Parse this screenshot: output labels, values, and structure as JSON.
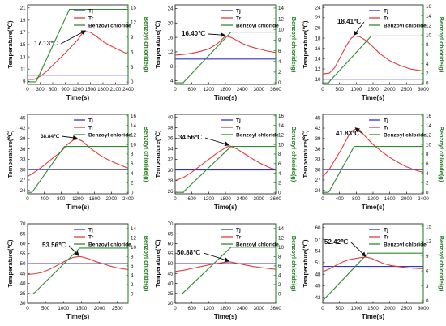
{
  "colors": {
    "tj": "#3333cc",
    "tr": "#e03c3c",
    "bc": "#2e8b2e",
    "axis_right": "#1f7a1f",
    "arrow": "#111111"
  },
  "legend": {
    "tj": "Tj",
    "tr": "Tr",
    "bc": "Benzoyl chloride"
  },
  "axes": {
    "xlabel": "Time(s)",
    "ylabel": "Temperature(℃)",
    "ylabel_right": "Benzoyl chloride(g)"
  },
  "chart_data": [
    {
      "type": "line",
      "annotation": "17.13℃",
      "xticks": [
        0,
        300,
        600,
        900,
        1200,
        1500,
        1800,
        2100,
        2400
      ],
      "xlim": [
        0,
        2400
      ],
      "yticks": [
        9,
        11,
        13,
        15,
        17,
        19,
        21
      ],
      "ylim": [
        8.5,
        21.5
      ],
      "y2ticks": [
        0,
        3,
        6,
        9,
        12,
        15
      ],
      "y2lim": [
        -0.5,
        15.5
      ],
      "series": [
        {
          "name": "Tj",
          "axis": "left",
          "x": [
            0,
            2400
          ],
          "y": [
            10,
            10
          ]
        },
        {
          "name": "Tr",
          "axis": "left",
          "x": [
            0,
            150,
            300,
            450,
            600,
            750,
            900,
            1050,
            1200,
            1300,
            1400,
            1500,
            1650,
            1800,
            1950,
            2100,
            2250,
            2400
          ],
          "y": [
            9.3,
            9.3,
            9.8,
            10.6,
            11.6,
            12.6,
            13.6,
            14.7,
            15.8,
            16.8,
            17.13,
            17.0,
            16.3,
            15.5,
            14.9,
            14.4,
            13.9,
            13.4
          ]
        },
        {
          "name": "Benzoyl chloride",
          "axis": "right",
          "x": [
            0,
            200,
            220,
            1000,
            2400
          ],
          "y": [
            0,
            0,
            0.3,
            14.6,
            14.6
          ]
        }
      ],
      "annotation_point": [
        1400,
        17.13
      ]
    },
    {
      "type": "line",
      "annotation": "16.40℃",
      "xticks": [
        0,
        600,
        1200,
        1800,
        2400,
        3000,
        3600
      ],
      "xlim": [
        0,
        3600
      ],
      "yticks": [
        4,
        8,
        12,
        16,
        20,
        24
      ],
      "ylim": [
        3,
        25
      ],
      "y2ticks": [
        0,
        2,
        4,
        6,
        8,
        10,
        12,
        14
      ],
      "y2lim": [
        -0.3,
        14.6
      ],
      "series": [
        {
          "name": "Tj",
          "axis": "left",
          "x": [
            0,
            3600
          ],
          "y": [
            10,
            10
          ]
        },
        {
          "name": "Tr",
          "axis": "left",
          "x": [
            0,
            300,
            600,
            900,
            1200,
            1500,
            1650,
            1800,
            2000,
            2200,
            2400,
            2700,
            3000,
            3300,
            3600
          ],
          "y": [
            11.1,
            11.3,
            11.6,
            12.1,
            12.8,
            14.2,
            15.2,
            16.4,
            16.0,
            15.2,
            14.3,
            13.4,
            12.8,
            12.2,
            11.8
          ]
        },
        {
          "name": "Benzoyl chloride",
          "axis": "right",
          "x": [
            0,
            300,
            320,
            2000,
            3600
          ],
          "y": [
            0,
            0,
            0.2,
            9.5,
            9.5
          ]
        }
      ],
      "annotation_point": [
        1800,
        16.4
      ]
    },
    {
      "type": "line",
      "annotation": "18.41℃",
      "xticks": [
        0,
        500,
        1000,
        1500,
        2000,
        2500,
        3000
      ],
      "xlim": [
        0,
        3000
      ],
      "yticks": [
        10,
        12,
        14,
        16,
        18,
        20,
        22,
        24
      ],
      "ylim": [
        9,
        24.5
      ],
      "y2ticks": [
        0,
        2,
        4,
        6,
        8,
        10,
        12,
        14,
        16
      ],
      "y2lim": [
        -0.3,
        16.3
      ],
      "series": [
        {
          "name": "Tj",
          "axis": "left",
          "x": [
            0,
            3000
          ],
          "y": [
            10,
            10
          ]
        },
        {
          "name": "Tr",
          "axis": "left",
          "x": [
            0,
            200,
            350,
            500,
            700,
            850,
            950,
            1100,
            1300,
            1500,
            1700,
            2000,
            2300,
            2600,
            3000
          ],
          "y": [
            11.0,
            11.2,
            12.2,
            14.0,
            16.5,
            18.0,
            18.41,
            18.3,
            17.5,
            16.3,
            15.0,
            13.6,
            12.7,
            12.0,
            11.6
          ]
        },
        {
          "name": "Benzoyl chloride",
          "axis": "right",
          "x": [
            0,
            180,
            200,
            1450,
            3000
          ],
          "y": [
            0,
            0,
            0.3,
            9.8,
            9.8
          ]
        }
      ],
      "annotation_point": [
        950,
        18.41
      ]
    },
    {
      "type": "line",
      "annotation": "38.84℃",
      "xticks": [
        0,
        400,
        800,
        1200,
        1600,
        2000,
        2400
      ],
      "xlim": [
        0,
        2400
      ],
      "yticks": [
        24,
        27,
        30,
        33,
        36,
        39,
        42,
        45
      ],
      "ylim": [
        23,
        46
      ],
      "y2ticks": [
        0,
        2,
        4,
        6,
        8,
        10,
        12,
        14,
        16
      ],
      "y2lim": [
        -0.3,
        16.3
      ],
      "series": [
        {
          "name": "Tj",
          "axis": "left",
          "x": [
            0,
            2400
          ],
          "y": [
            30,
            30
          ]
        },
        {
          "name": "Tr",
          "axis": "left",
          "x": [
            0,
            200,
            400,
            600,
            800,
            950,
            1100,
            1200,
            1300,
            1500,
            1700,
            1900,
            2100,
            2400
          ],
          "y": [
            28.0,
            29.5,
            31.3,
            33.3,
            35.2,
            37.3,
            38.6,
            38.84,
            38.3,
            36.2,
            34.4,
            33.0,
            31.9,
            30.4
          ]
        },
        {
          "name": "Benzoyl chloride",
          "axis": "right",
          "x": [
            0,
            100,
            130,
            880,
            2400
          ],
          "y": [
            0,
            0,
            0.3,
            9.6,
            9.6
          ]
        }
      ],
      "annotation_point": [
        1200,
        38.84
      ]
    },
    {
      "type": "line",
      "annotation": "34.56℃",
      "xticks": [
        0,
        600,
        1200,
        1800,
        2400,
        3000,
        3600
      ],
      "xlim": [
        0,
        3600
      ],
      "yticks": [
        26,
        28,
        30,
        32,
        34,
        36,
        38,
        40
      ],
      "ylim": [
        25.5,
        40.5
      ],
      "y2ticks": [
        0,
        2,
        4,
        6,
        8,
        10,
        12,
        14,
        16
      ],
      "y2lim": [
        -0.3,
        16.3
      ],
      "series": [
        {
          "name": "Tj",
          "axis": "left",
          "x": [
            0,
            3600
          ],
          "y": [
            30,
            30
          ]
        },
        {
          "name": "Tr",
          "axis": "left",
          "x": [
            0,
            300,
            600,
            900,
            1200,
            1500,
            1800,
            1950,
            2200,
            2500,
            2800,
            3100,
            3400,
            3600
          ],
          "y": [
            28.0,
            28.6,
            29.6,
            30.8,
            32.0,
            33.2,
            34.2,
            34.56,
            34.0,
            33.0,
            32.0,
            31.1,
            30.4,
            30.1
          ]
        },
        {
          "name": "Benzoyl chloride",
          "axis": "right",
          "x": [
            0,
            300,
            330,
            2000,
            3600
          ],
          "y": [
            0,
            0,
            0.3,
            9.6,
            9.6
          ]
        }
      ],
      "annotation_point": [
        1950,
        34.56
      ]
    },
    {
      "type": "line",
      "annotation": "41.83℃",
      "xticks": [
        0,
        400,
        800,
        1200,
        1600,
        2000,
        2400
      ],
      "xlim": [
        0,
        2400
      ],
      "yticks": [
        24,
        27,
        30,
        33,
        36,
        39,
        42,
        45
      ],
      "ylim": [
        23,
        46
      ],
      "y2ticks": [
        0,
        2,
        4,
        6,
        8,
        10,
        12,
        14,
        16
      ],
      "y2lim": [
        -0.3,
        16.3
      ],
      "series": [
        {
          "name": "Tj",
          "axis": "left",
          "x": [
            0,
            2400
          ],
          "y": [
            30,
            30
          ]
        },
        {
          "name": "Tr",
          "axis": "left",
          "x": [
            0,
            150,
            300,
            450,
            600,
            700,
            800,
            900,
            1000,
            1200,
            1400,
            1600,
            1800,
            2000,
            2200,
            2400
          ],
          "y": [
            28.0,
            30.0,
            33.0,
            36.0,
            39.5,
            41.2,
            41.83,
            41.3,
            39.8,
            37.3,
            35.3,
            33.5,
            32.1,
            30.8,
            29.9,
            29.2
          ]
        },
        {
          "name": "Benzoyl chloride",
          "axis": "right",
          "x": [
            0,
            130,
            160,
            750,
            2400
          ],
          "y": [
            0,
            0,
            0.3,
            9.6,
            9.6
          ]
        }
      ],
      "annotation_point": [
        800,
        41.83
      ]
    },
    {
      "type": "line",
      "annotation": "53.56℃",
      "xticks": [
        0,
        500,
        1000,
        1500,
        2000,
        2500
      ],
      "xlim": [
        0,
        2800
      ],
      "yticks": [
        30,
        35,
        40,
        45,
        50,
        55,
        60,
        65,
        70
      ],
      "ylim": [
        30,
        70
      ],
      "y2ticks": [
        0,
        2,
        4,
        6,
        8,
        10,
        12,
        14
      ],
      "y2lim": [
        -2,
        15
      ],
      "series": [
        {
          "name": "Tj",
          "axis": "left",
          "x": [
            0,
            2800
          ],
          "y": [
            50,
            50
          ]
        },
        {
          "name": "Tr",
          "axis": "left",
          "x": [
            0,
            200,
            400,
            600,
            800,
            1000,
            1150,
            1300,
            1450,
            1550,
            1700,
            1900,
            2100,
            2300,
            2500,
            2800
          ],
          "y": [
            44.5,
            44.8,
            45.5,
            47.0,
            48.8,
            50.8,
            52.3,
            53.2,
            53.56,
            53.2,
            52.4,
            51.0,
            49.9,
            48.7,
            47.8,
            46.9
          ]
        },
        {
          "name": "Benzoyl chloride",
          "axis": "right",
          "x": [
            0,
            150,
            200,
            1450,
            2800
          ],
          "y": [
            0,
            0,
            0.3,
            9.8,
            9.8
          ]
        }
      ],
      "annotation_point": [
        1450,
        53.56
      ]
    },
    {
      "type": "line",
      "annotation": "50.88℃",
      "xticks": [
        0,
        600,
        1200,
        1800,
        2400,
        3000,
        3600
      ],
      "xlim": [
        0,
        3600
      ],
      "yticks": [
        30,
        35,
        40,
        45,
        50,
        55,
        60,
        65,
        70
      ],
      "ylim": [
        30,
        70
      ],
      "y2ticks": [
        0,
        2,
        4,
        6,
        8,
        10,
        12,
        14
      ],
      "y2lim": [
        -2,
        15
      ],
      "series": [
        {
          "name": "Tj",
          "axis": "left",
          "x": [
            0,
            3600
          ],
          "y": [
            50,
            50
          ]
        },
        {
          "name": "Tr",
          "axis": "left",
          "x": [
            0,
            300,
            600,
            900,
            1200,
            1500,
            1800,
            1950,
            2200,
            2500,
            2800,
            3100,
            3400,
            3600
          ],
          "y": [
            46.0,
            46.6,
            47.5,
            48.4,
            49.3,
            50.1,
            50.7,
            50.88,
            50.2,
            49.3,
            48.5,
            47.9,
            47.4,
            47.1
          ]
        },
        {
          "name": "Benzoyl chloride",
          "axis": "right",
          "x": [
            0,
            250,
            280,
            2000,
            3600
          ],
          "y": [
            0,
            0,
            0.2,
            10.0,
            10.0
          ]
        }
      ],
      "annotation_point": [
        1950,
        50.88
      ]
    },
    {
      "type": "line",
      "annotation": "52.42℃",
      "xticks": [
        0,
        500,
        1000,
        1500,
        2000,
        2500,
        3000
      ],
      "xlim": [
        0,
        3000
      ],
      "yticks": [
        42,
        45,
        48,
        51,
        54,
        57,
        60
      ],
      "ylim": [
        40.5,
        61
      ],
      "y2ticks": [
        0,
        3,
        6,
        9,
        12,
        15
      ],
      "y2lim": [
        -0.5,
        15.5
      ],
      "series": [
        {
          "name": "Tj",
          "axis": "left",
          "x": [
            0,
            3000
          ],
          "y": [
            50,
            50
          ]
        },
        {
          "name": "Tr",
          "axis": "left",
          "x": [
            0,
            200,
            400,
            600,
            800,
            1000,
            1150,
            1300,
            1450,
            1600,
            1800,
            2000,
            2300,
            2600,
            3000
          ],
          "y": [
            48.6,
            49.4,
            50.3,
            51.2,
            51.8,
            52.1,
            52.3,
            52.42,
            52.1,
            51.5,
            50.8,
            50.3,
            49.9,
            49.6,
            49.4
          ]
        },
        {
          "name": "Benzoyl chloride",
          "axis": "right",
          "x": [
            0,
            1350,
            3000
          ],
          "y": [
            0,
            9.6,
            9.6
          ]
        }
      ],
      "annotation_point": [
        1300,
        52.42
      ]
    }
  ]
}
